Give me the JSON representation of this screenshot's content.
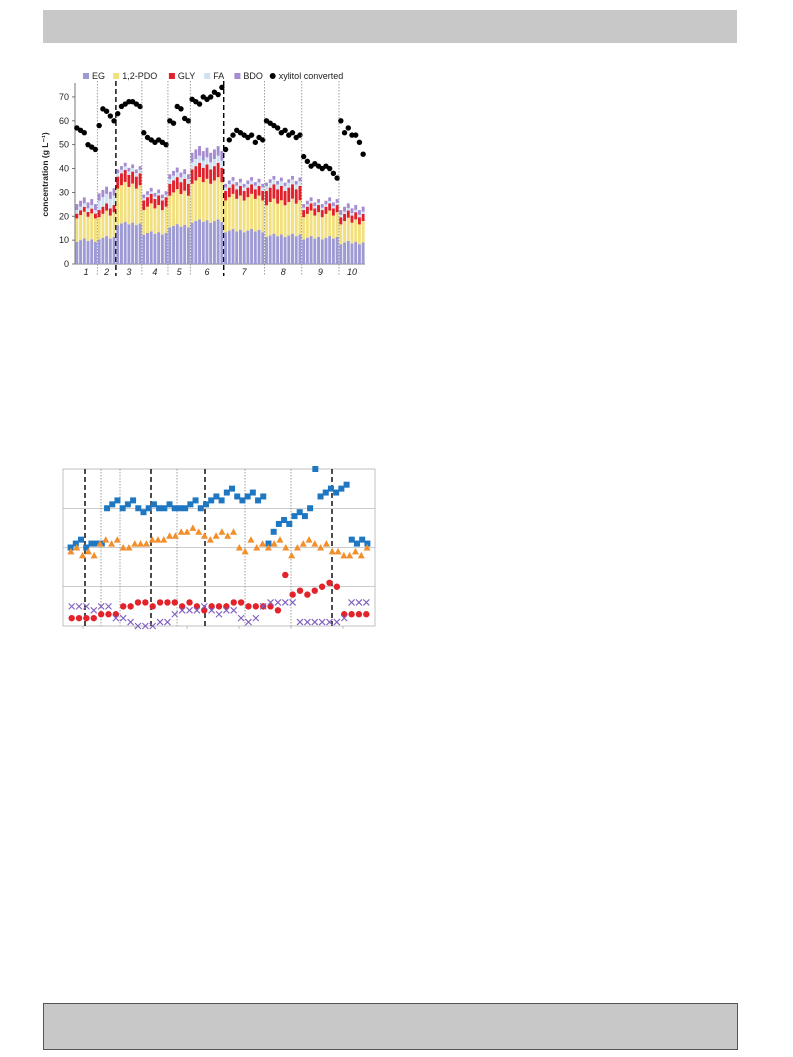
{
  "charts": [
    {
      "type": "bar",
      "ylabel": "concentration (g L⁻¹)",
      "ylim": [
        0,
        75
      ],
      "yticks": [
        0,
        10,
        20,
        30,
        40,
        50,
        60,
        70
      ],
      "period_labels": [
        "1",
        "2",
        "3",
        "4",
        "5",
        "6",
        "7",
        "8",
        "9",
        "10"
      ],
      "legend": [
        {
          "name": "EG",
          "color": "#9d9ad4"
        },
        {
          "name": "1,2-PDO",
          "color": "#f2e07e"
        },
        {
          "name": "GLY",
          "color": "#e0202a"
        },
        {
          "name": "FA",
          "color": "#cfe2f3"
        },
        {
          "name": "BDO",
          "color": "#a58bd0"
        },
        {
          "name": "xylitol converted",
          "color": "#000000"
        }
      ],
      "chart_data": {
        "type": "bar",
        "stacked": true,
        "periods": [
          {
            "label": "1",
            "n": 6,
            "EG": 10,
            "PDO": 10.5,
            "GLY": 2,
            "FA": 1.5,
            "BDO": 2.5,
            "xyl": [
              57,
              56,
              55,
              50,
              49,
              48
            ]
          },
          {
            "label": "2",
            "n": 5,
            "EG": 11,
            "PDO": 10,
            "GLY": 3,
            "FA": 4,
            "BDO": 3,
            "xyl": [
              58,
              65,
              64,
              62,
              60
            ]
          },
          {
            "label": "3",
            "n": 7,
            "EG": 17,
            "PDO": 16,
            "GLY": 5,
            "FA": 1.5,
            "BDO": 1.5,
            "xyl": [
              63,
              66,
              67,
              68,
              68,
              67,
              66
            ]
          },
          {
            "label": "4",
            "n": 7,
            "EG": 13,
            "PDO": 11,
            "GLY": 4,
            "FA": 1,
            "BDO": 1.5,
            "xyl": [
              55,
              53,
              52,
              51,
              52,
              51,
              50
            ]
          },
          {
            "label": "5",
            "n": 6,
            "EG": 16,
            "PDO": 14,
            "GLY": 5,
            "FA": 2,
            "BDO": 2,
            "xyl": [
              60,
              59,
              66,
              65,
              61,
              60
            ]
          },
          {
            "label": "6",
            "n": 9,
            "EG": 18,
            "PDO": 17,
            "GLY": 6,
            "FA": 3,
            "BDO": 4,
            "xyl": [
              69,
              68,
              67,
              70,
              69,
              70,
              72,
              71,
              74
            ]
          },
          {
            "label": "7",
            "n": 11,
            "EG": 14,
            "PDO": 14,
            "GLY": 4,
            "FA": 1.5,
            "BDO": 1.5,
            "xyl": [
              48,
              52,
              54,
              56,
              55,
              54,
              53,
              54,
              51,
              53,
              52
            ]
          },
          {
            "label": "8",
            "n": 10,
            "EG": 12,
            "PDO": 14,
            "GLY": 6,
            "FA": 2,
            "BDO": 1.5,
            "xyl": [
              60,
              59,
              58,
              57,
              55,
              56,
              54,
              55,
              53,
              54
            ]
          },
          {
            "label": "9",
            "n": 10,
            "EG": 11,
            "PDO": 10,
            "GLY": 3,
            "FA": 1,
            "BDO": 1.5,
            "xyl": [
              45,
              43,
              41,
              42,
              41,
              40,
              41,
              40,
              38,
              36
            ]
          },
          {
            "label": "10",
            "n": 7,
            "EG": 9,
            "PDO": 9,
            "GLY": 3,
            "FA": 1,
            "BDO": 2,
            "xyl": [
              60,
              55,
              57,
              54,
              54,
              51,
              46
            ]
          }
        ]
      }
    },
    {
      "type": "scatter",
      "ylim": [
        0,
        4
      ],
      "chart_data": {
        "type": "scatter",
        "series": [
          {
            "marker": "square",
            "color": "#1f77c2",
            "values": [
              2.0,
              2.1,
              2.2,
              2.0,
              2.1,
              2.1,
              2.1,
              3.0,
              3.1,
              3.2,
              3.0,
              3.1,
              3.2,
              3.0,
              2.9,
              3.0,
              3.1,
              3.0,
              3.0,
              3.1,
              3.0,
              3.0,
              3.0,
              3.1,
              3.2,
              3.0,
              3.1,
              3.2,
              3.3,
              3.2,
              3.4,
              3.5,
              3.3,
              3.2,
              3.3,
              3.4,
              3.2,
              3.3,
              2.1,
              2.4,
              2.6,
              2.7,
              2.6,
              2.8,
              2.9,
              2.8,
              3.0,
              4.0,
              3.3,
              3.4,
              3.5,
              3.4,
              3.5,
              3.6,
              2.2,
              2.1,
              2.2,
              2.1
            ]
          },
          {
            "marker": "triangle",
            "color": "#f28e2b",
            "values": [
              1.9,
              2.0,
              1.8,
              1.9,
              1.8,
              2.1,
              2.2,
              2.1,
              2.2,
              2.0,
              2.0,
              2.1,
              2.1,
              2.1,
              2.2,
              2.2,
              2.2,
              2.3,
              2.3,
              2.4,
              2.4,
              2.5,
              2.4,
              2.3,
              2.2,
              2.3,
              2.4,
              2.3,
              2.4,
              2.0,
              1.9,
              2.2,
              2.0,
              2.1,
              2.0,
              2.1,
              2.2,
              2.0,
              1.8,
              2.0,
              2.1,
              2.2,
              2.1,
              2.0,
              2.1,
              1.9,
              1.9,
              1.8,
              1.8,
              1.9,
              1.8,
              2.0
            ]
          },
          {
            "marker": "circle",
            "color": "#e3222a",
            "values": [
              0.2,
              0.2,
              0.2,
              0.2,
              0.3,
              0.3,
              0.3,
              0.5,
              0.5,
              0.6,
              0.6,
              0.5,
              0.6,
              0.6,
              0.6,
              0.5,
              0.6,
              0.5,
              0.4,
              0.5,
              0.5,
              0.5,
              0.6,
              0.6,
              0.5,
              0.5,
              0.5,
              0.5,
              0.4,
              1.3,
              0.8,
              0.9,
              0.8,
              0.9,
              1.0,
              1.1,
              1.0,
              0.3,
              0.3,
              0.3,
              0.3
            ]
          },
          {
            "marker": "x",
            "color": "#7f5fbf",
            "values": [
              0.5,
              0.5,
              0.5,
              0.4,
              0.5,
              0.5,
              0.2,
              0.2,
              0.1,
              0.0,
              0.0,
              0.0,
              0.1,
              0.1,
              0.3,
              0.4,
              0.4,
              0.4,
              0.5,
              0.4,
              0.3,
              0.4,
              0.4,
              0.2,
              0.1,
              0.2,
              0.5,
              0.6,
              0.6,
              0.6,
              0.6,
              0.1,
              0.1,
              0.1,
              0.1,
              0.1,
              0.1,
              0.2,
              0.6,
              0.6,
              0.6
            ]
          }
        ]
      }
    }
  ]
}
